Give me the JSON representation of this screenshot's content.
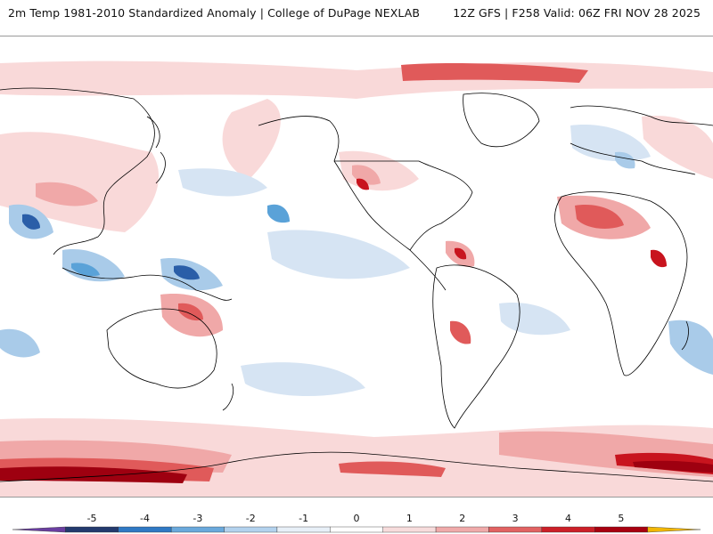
{
  "header": {
    "title_left": "2m Temp 1981-2010 Standardized Anomaly | College of DuPage NEXLAB",
    "title_right": "12Z GFS | F258 Valid: 06Z FRI NOV 28 2025"
  },
  "map": {
    "variable": "2m temperature standardized anomaly",
    "projection": "global cylindrical, Pacific-centered",
    "colors": {
      "ocean_land_neutral": "#ffffff",
      "warm_1": "#f9d9d9",
      "warm_2": "#f0a8a8",
      "warm_3": "#e05a5a",
      "warm_4": "#c8141e",
      "warm_5": "#9e0010",
      "cool_1": "#d6e4f3",
      "cool_2": "#a9cbe9",
      "cool_3": "#5aa2d8",
      "cool_4": "#2a5ea8",
      "coastline": "#000000"
    }
  },
  "colorbar": {
    "ticks": [
      "-5",
      "-4",
      "-3",
      "-2",
      "-1",
      "0",
      "1",
      "2",
      "3",
      "4",
      "5"
    ],
    "segment_colors": [
      "#6a3ea1",
      "#233a6e",
      "#2f79c4",
      "#6aa9dc",
      "#b3d2ee",
      "#e8f0f8",
      "#ffffff",
      "#f7dcdc",
      "#f0aaaa",
      "#e26262",
      "#cc1f28",
      "#a8000f",
      "#f2b705"
    ]
  }
}
